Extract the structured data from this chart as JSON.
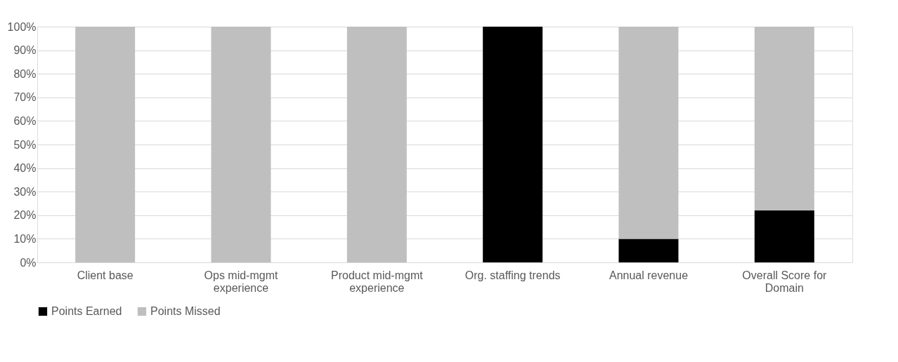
{
  "chart_data": {
    "type": "bar",
    "stacked": true,
    "categories": [
      "Client base",
      "Ops mid-mgmt experience",
      "Product mid-mgmt experience",
      "Org. staffing trends",
      "Annual revenue",
      "Overall Score for Domain"
    ],
    "series": [
      {
        "name": "Points Earned",
        "color": "#000000",
        "values": [
          0,
          0,
          0,
          100,
          10,
          22
        ]
      },
      {
        "name": "Points Missed",
        "color": "#bfbfbf",
        "values": [
          100,
          100,
          100,
          0,
          90,
          78
        ]
      }
    ],
    "ylim": [
      0,
      100
    ],
    "yticks": [
      {
        "value": 0,
        "label": "0%"
      },
      {
        "value": 10,
        "label": "10%"
      },
      {
        "value": 20,
        "label": "20%"
      },
      {
        "value": 30,
        "label": "30%"
      },
      {
        "value": 40,
        "label": "40%"
      },
      {
        "value": 50,
        "label": "50%"
      },
      {
        "value": 60,
        "label": "60%"
      },
      {
        "value": 70,
        "label": "70%"
      },
      {
        "value": 80,
        "label": "80%"
      },
      {
        "value": 90,
        "label": "90%"
      },
      {
        "value": 100,
        "label": "100%"
      }
    ],
    "grid": "y",
    "legend": "bottom"
  }
}
